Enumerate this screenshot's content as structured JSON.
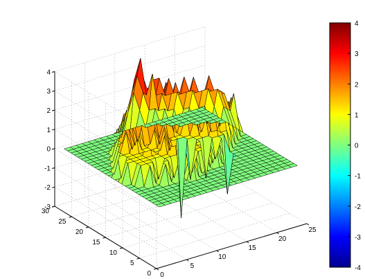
{
  "chart_data": {
    "type": "surface3d",
    "title": "",
    "xlabel": "",
    "ylabel": "",
    "zlabel": "",
    "xlim": [
      0,
      25
    ],
    "ylim": [
      0,
      30
    ],
    "zlim": [
      -3,
      4
    ],
    "x_ticks": [
      "0",
      "5",
      "10",
      "15",
      "20",
      "25"
    ],
    "y_ticks": [
      "0",
      "5",
      "10",
      "15",
      "20",
      "25",
      "30"
    ],
    "z_ticks": [
      "-3",
      "-2",
      "-1",
      "0",
      "1",
      "2",
      "3",
      "4"
    ],
    "grid": true,
    "colormap": "jet",
    "colorbar": {
      "limits": [
        -4,
        4
      ],
      "ticks": [
        "-4",
        "-3",
        "-2",
        "-1",
        "0",
        "1",
        "2",
        "3",
        "4"
      ]
    },
    "surface_z": [
      [
        0,
        0,
        0,
        0,
        0,
        0,
        0,
        0,
        0,
        0,
        0,
        0,
        0,
        0,
        0,
        0,
        0,
        0,
        0,
        0,
        0,
        0,
        0,
        0
      ],
      [
        0,
        0,
        0,
        0,
        0,
        0,
        0,
        0,
        0,
        0,
        0,
        0,
        0,
        0,
        0,
        0,
        0,
        0,
        0,
        0,
        0,
        0,
        0,
        0
      ],
      [
        0,
        0,
        0,
        0,
        0,
        0,
        0,
        0,
        0,
        0,
        0,
        0,
        0,
        0,
        0,
        0,
        0,
        0,
        0,
        0,
        0,
        0,
        0,
        0
      ],
      [
        0,
        0,
        0,
        0,
        0,
        0,
        0,
        0,
        0,
        0,
        0,
        0,
        0,
        0,
        0,
        0,
        0,
        0,
        0,
        0,
        0,
        0,
        0,
        0
      ],
      [
        0,
        0,
        0,
        0,
        0,
        0,
        0,
        0,
        0,
        0,
        0,
        0,
        0,
        0,
        0,
        0,
        0,
        0,
        0,
        0,
        0,
        0,
        0,
        0
      ],
      [
        0,
        0,
        0,
        0,
        0,
        0,
        0,
        0,
        0,
        0,
        0,
        0,
        0,
        0,
        0,
        0,
        0,
        0,
        0,
        0,
        0,
        0,
        0,
        0
      ],
      [
        0,
        0,
        0,
        0,
        0,
        0,
        0,
        0,
        0,
        1,
        0,
        0,
        0,
        0,
        0,
        0,
        0,
        0,
        0,
        0,
        0,
        0,
        0,
        0
      ],
      [
        0,
        0,
        0,
        0,
        0,
        1,
        0,
        1,
        0,
        1,
        1,
        0,
        0,
        0,
        0,
        0,
        0,
        0,
        0,
        0,
        0,
        0,
        0,
        0
      ],
      [
        0,
        0,
        0,
        1,
        0,
        1,
        1,
        0,
        1,
        1,
        0,
        1,
        1,
        0,
        1,
        0,
        0,
        0,
        0,
        0,
        0,
        0,
        0,
        0
      ],
      [
        0,
        0,
        1,
        1,
        1,
        0,
        1,
        1,
        1,
        1,
        1,
        1,
        1,
        1,
        0,
        1,
        0,
        0,
        0,
        0,
        0,
        0,
        0,
        0
      ],
      [
        0,
        0,
        1,
        1,
        1,
        1,
        1,
        1,
        2,
        1,
        1,
        2,
        1,
        1,
        1,
        0,
        1,
        -2,
        0,
        0,
        0,
        0,
        0,
        0
      ],
      [
        0,
        1,
        1,
        1,
        1,
        1,
        1,
        2,
        1,
        2,
        1,
        1,
        1,
        1,
        -1,
        1,
        1,
        1,
        0,
        0,
        0,
        0,
        0,
        0
      ],
      [
        0,
        1,
        1,
        1,
        1,
        2,
        1,
        1,
        2,
        1,
        1,
        1,
        -1,
        1,
        1,
        1,
        2,
        1,
        1,
        0,
        0,
        0,
        0,
        0
      ],
      [
        0,
        0,
        1,
        1,
        1,
        1,
        1,
        1,
        2,
        1,
        2,
        -3,
        1,
        1,
        1,
        2,
        1,
        1,
        2,
        1,
        0,
        0,
        0,
        0
      ],
      [
        0,
        1,
        1,
        1,
        2,
        1,
        1,
        2,
        1,
        2,
        1,
        1,
        1,
        1,
        2,
        1,
        2,
        2,
        1,
        2,
        1,
        0,
        0,
        0
      ],
      [
        0,
        0,
        1,
        2,
        1,
        2,
        1,
        1,
        2,
        2,
        1,
        1,
        1,
        2,
        2,
        1,
        2,
        2,
        2,
        1,
        2,
        1,
        0,
        0
      ],
      [
        0,
        0,
        1,
        2,
        2,
        1,
        2,
        2,
        2,
        1,
        2,
        2,
        1,
        2,
        2,
        2,
        2,
        1,
        2,
        2,
        1,
        2,
        1,
        0
      ],
      [
        0,
        0,
        0,
        1,
        2,
        2,
        1,
        2,
        2,
        2,
        2,
        2,
        1,
        2,
        2,
        2,
        2,
        2,
        2,
        2,
        2,
        1,
        2,
        0
      ],
      [
        0,
        0,
        0,
        1,
        1,
        2,
        2,
        2,
        2,
        2,
        2,
        2,
        2,
        2,
        2,
        2,
        2,
        2,
        2,
        2,
        2,
        2,
        1,
        0
      ],
      [
        0,
        0,
        0,
        0,
        1,
        2,
        2,
        2,
        2,
        3,
        2,
        2,
        2,
        2,
        2,
        2,
        2,
        2,
        2,
        3,
        2,
        2,
        1,
        0
      ],
      [
        0,
        0,
        0,
        0,
        1,
        1,
        2,
        3,
        2,
        2,
        2,
        3,
        2,
        2,
        3,
        2,
        2,
        3,
        2,
        2,
        2,
        2,
        1,
        0
      ],
      [
        0,
        0,
        0,
        0,
        0,
        1,
        2,
        2,
        3,
        2,
        3,
        2,
        2,
        3,
        2,
        2,
        3,
        2,
        2,
        2,
        2,
        1,
        0,
        0
      ],
      [
        0,
        0,
        0,
        0,
        0,
        1,
        1,
        2,
        2,
        3,
        2,
        3,
        3,
        2,
        3,
        2,
        2,
        2,
        2,
        1,
        1,
        0,
        0,
        0
      ],
      [
        0,
        0,
        0,
        0,
        0,
        0,
        1,
        1,
        2,
        3,
        3,
        2,
        3,
        3,
        2,
        2,
        2,
        1,
        1,
        0,
        0,
        0,
        0,
        0
      ],
      [
        0,
        0,
        0,
        0,
        0,
        0,
        0,
        1,
        1,
        2,
        3,
        3,
        2,
        2,
        2,
        1,
        1,
        0,
        0,
        0,
        0,
        0,
        0,
        0
      ],
      [
        0,
        0,
        0,
        0,
        0,
        0,
        0,
        0,
        1,
        1,
        3,
        4,
        2,
        3,
        1,
        1,
        0,
        0,
        0,
        0,
        0,
        0,
        0,
        0
      ],
      [
        0,
        0,
        0,
        0,
        0,
        0,
        0,
        0,
        0,
        1,
        2,
        3,
        2,
        1,
        1,
        0,
        0,
        0,
        0,
        0,
        0,
        0,
        0,
        0
      ],
      [
        0,
        0,
        0,
        0,
        0,
        0,
        0,
        0,
        0,
        0,
        1,
        2,
        1,
        0,
        0,
        0,
        0,
        0,
        0,
        0,
        0,
        0,
        0,
        0
      ],
      [
        0,
        0,
        0,
        0,
        0,
        0,
        0,
        0,
        0,
        0,
        0,
        0,
        0,
        0,
        0,
        0,
        0,
        0,
        0,
        0,
        0,
        0,
        0,
        0
      ]
    ]
  }
}
